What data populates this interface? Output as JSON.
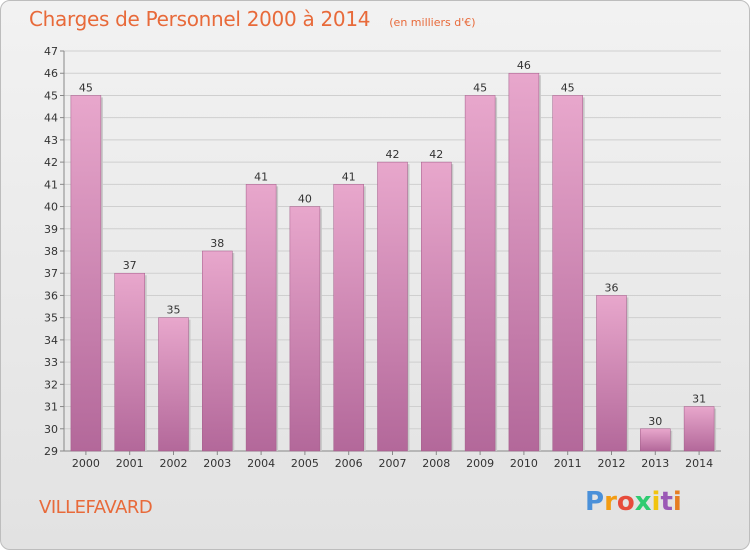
{
  "chart_data": {
    "type": "bar",
    "title": "Charges de Personnel 2000 à 2014",
    "subtitle": "(en milliers d'€)",
    "categories": [
      "2000",
      "2001",
      "2002",
      "2003",
      "2004",
      "2005",
      "2006",
      "2007",
      "2008",
      "2009",
      "2010",
      "2011",
      "2012",
      "2013",
      "2014"
    ],
    "values": [
      45,
      37,
      35,
      38,
      41,
      40,
      41,
      42,
      42,
      45,
      46,
      45,
      36,
      30,
      31
    ],
    "ylim": [
      29,
      47
    ],
    "yticks": [
      29,
      30,
      31,
      32,
      33,
      34,
      35,
      36,
      37,
      38,
      39,
      40,
      41,
      42,
      43,
      44,
      45,
      46,
      47
    ],
    "grid": true,
    "bar_color": "#c0679a",
    "bar_color_light": "#e8a7cc"
  },
  "footer": {
    "town": "VILLEFAVARD",
    "logo_letters": [
      "P",
      "r",
      "o",
      "x",
      "i",
      "t",
      "i"
    ],
    "logo_colors": [
      "#4a90d9",
      "#f39c12",
      "#e74c3c",
      "#2ecc71",
      "#f1c40f",
      "#9b59b6",
      "#e67e22"
    ]
  }
}
